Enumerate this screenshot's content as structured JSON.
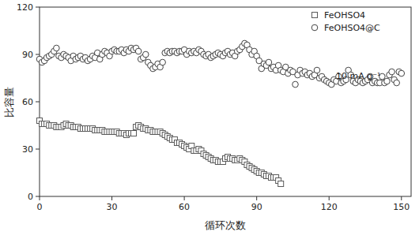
{
  "chart_data": {
    "type": "scatter",
    "x_label": "循环次数",
    "y_label": "比容量",
    "annotations": [
      "10 mA g⁻¹"
    ],
    "legend": "upper right",
    "grid": false,
    "xlim": [
      0,
      154
    ],
    "ylim": [
      0,
      120
    ],
    "xticks": [
      0,
      30,
      60,
      90,
      120,
      150
    ],
    "yticks": [
      0,
      30,
      60,
      90,
      120
    ],
    "x": [
      0,
      1,
      2,
      3,
      4,
      5,
      6,
      7,
      8,
      9,
      10,
      11,
      12,
      13,
      14,
      15,
      16,
      17,
      18,
      19,
      20,
      21,
      22,
      23,
      24,
      25,
      26,
      27,
      28,
      29,
      30,
      31,
      32,
      33,
      34,
      35,
      36,
      37,
      38,
      39,
      40,
      41,
      42,
      43,
      44,
      45,
      46,
      47,
      48,
      49,
      50,
      51,
      52,
      53,
      54,
      55,
      56,
      57,
      58,
      59,
      60,
      61,
      62,
      63,
      64,
      65,
      66,
      67,
      68,
      69,
      70,
      71,
      72,
      73,
      74,
      75,
      76,
      77,
      78,
      79,
      80,
      81,
      82,
      83,
      84,
      85,
      86,
      87,
      88,
      89,
      90,
      91,
      92,
      93,
      94,
      95,
      96,
      97,
      98,
      99,
      100,
      101,
      102,
      103,
      104,
      105,
      106,
      107,
      108,
      109,
      110,
      111,
      112,
      113,
      114,
      115,
      116,
      117,
      118,
      119,
      120,
      121,
      122,
      123,
      124,
      125,
      126,
      127,
      128,
      129,
      130,
      131,
      132,
      133,
      134,
      135,
      136,
      137,
      138,
      139,
      140,
      141,
      142,
      143,
      144,
      145,
      146,
      147,
      148,
      149,
      150
    ],
    "series": [
      {
        "name": "FeOHSO4",
        "color": "#5a5a5a",
        "marker": "square",
        "line_style": "none",
        "values": [
          48,
          46,
          46,
          46,
          45,
          45,
          45,
          44,
          44,
          44,
          45,
          46,
          45,
          45,
          44,
          44,
          44,
          43,
          43,
          43,
          43,
          43,
          43,
          42,
          42,
          42,
          42,
          41,
          41,
          41,
          41,
          41,
          41,
          40,
          40,
          40,
          39,
          40,
          40,
          40,
          44,
          45,
          44,
          43,
          43,
          42,
          42,
          41,
          41,
          41,
          41,
          40,
          39,
          38,
          37,
          36,
          36,
          34,
          34,
          33,
          32,
          31,
          30,
          32,
          29,
          29,
          30,
          29,
          27,
          26,
          25,
          24,
          23,
          23,
          22,
          22,
          22,
          24,
          25,
          24,
          24,
          23,
          23,
          24,
          23,
          22,
          20,
          19,
          18,
          17,
          16,
          15,
          15,
          14,
          13,
          13,
          12,
          12,
          12,
          10,
          8,
          null,
          null,
          null,
          null,
          null,
          null,
          null,
          null,
          null,
          null,
          null,
          null,
          null,
          null,
          null,
          null,
          null,
          null,
          null,
          null,
          null,
          null,
          null,
          null,
          null,
          null,
          null,
          null,
          null,
          null,
          null,
          null,
          null,
          null,
          null,
          null,
          null,
          null,
          null,
          null,
          null,
          null,
          null,
          null,
          null,
          null,
          null,
          null,
          null,
          null
        ]
      },
      {
        "name": "FeOHSO4@C",
        "color": "#444444",
        "marker": "circle",
        "line_style": "none",
        "values": [
          87,
          85,
          86,
          88,
          89,
          90,
          92,
          94,
          89,
          88,
          90,
          89,
          88,
          86,
          89,
          87,
          88,
          89,
          87,
          88,
          86,
          87,
          89,
          88,
          91,
          87,
          90,
          92,
          91,
          89,
          92,
          93,
          92,
          92,
          93,
          91,
          93,
          92,
          94,
          93,
          94,
          92,
          87,
          88,
          90,
          85,
          83,
          81,
          82,
          84,
          82,
          85,
          91,
          92,
          91,
          92,
          92,
          91,
          92,
          92,
          93,
          90,
          92,
          91,
          92,
          91,
          93,
          92,
          90,
          89,
          90,
          88,
          89,
          90,
          91,
          90,
          89,
          91,
          92,
          90,
          91,
          89,
          92,
          93,
          95,
          97,
          96,
          93,
          90,
          92,
          89,
          86,
          81,
          84,
          83,
          85,
          81,
          82,
          80,
          83,
          80,
          79,
          82,
          78,
          80,
          79,
          71,
          77,
          80,
          78,
          79,
          77,
          78,
          76,
          77,
          80,
          75,
          76,
          74,
          73,
          72,
          71,
          74,
          73,
          76,
          72,
          73,
          74,
          80,
          77,
          73,
          72,
          74,
          73,
          72,
          73,
          74,
          76,
          72,
          73,
          72,
          72,
          76,
          72,
          73,
          77,
          79,
          74,
          72,
          79,
          78
        ]
      }
    ]
  }
}
